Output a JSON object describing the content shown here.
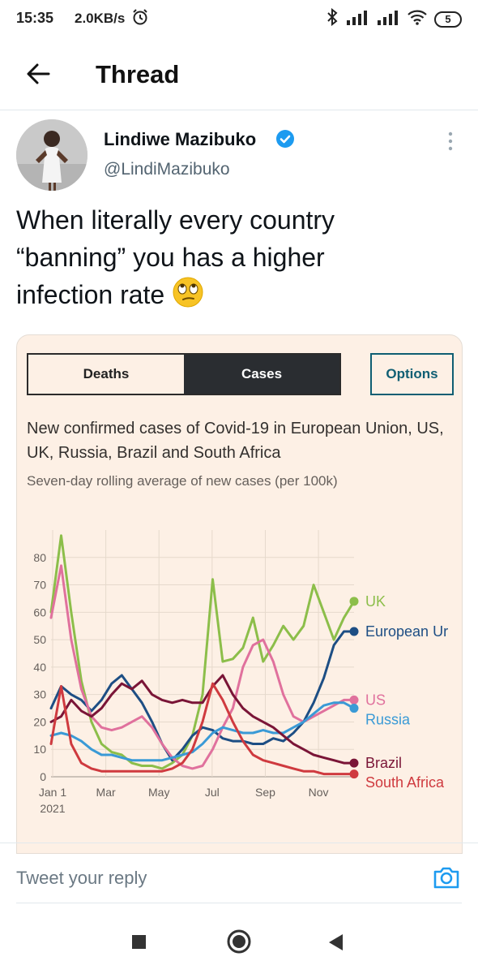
{
  "status": {
    "time": "15:35",
    "speed": "2.0KB/s",
    "battery": "5"
  },
  "header": {
    "title": "Thread"
  },
  "tweet": {
    "name": "Lindiwe Mazibuko",
    "handle": "@LindiMazibuko",
    "text_line1": "When literally every country",
    "text_line2": "“banning” you has a higher",
    "text_line3": "infection rate"
  },
  "card": {
    "tab_deaths": "Deaths",
    "tab_cases": "Cases",
    "options": "Options",
    "title": "New confirmed cases of Covid-19 in European Union, US, UK, Russia, Brazil and South Africa",
    "subtitle": "Seven-day rolling average of new cases (per 100k)"
  },
  "chart_data": {
    "type": "line",
    "ylim": [
      0,
      90
    ],
    "yticks": [
      "0",
      "10",
      "20",
      "30",
      "40",
      "50",
      "60",
      "70",
      "80"
    ],
    "xticks": [
      "Jan 1",
      "Mar",
      "May",
      "Jul",
      "Sep",
      "Nov"
    ],
    "x_sublabel": "2021",
    "grid": true,
    "series": [
      {
        "name": "UK",
        "color": "#8cbe4a",
        "values": [
          60,
          88,
          60,
          35,
          20,
          12,
          9,
          8,
          5,
          4,
          4,
          3,
          5,
          8,
          15,
          30,
          72,
          42,
          43,
          47,
          58,
          42,
          48,
          55,
          50,
          55,
          70,
          60,
          50,
          58,
          64
        ]
      },
      {
        "name": "European Ur",
        "color": "#1d4e84",
        "values": [
          25,
          33,
          30,
          28,
          24,
          28,
          34,
          37,
          32,
          27,
          20,
          12,
          6,
          10,
          15,
          18,
          17,
          14,
          13,
          13,
          12,
          12,
          14,
          13,
          16,
          20,
          27,
          36,
          48,
          53,
          53
        ]
      },
      {
        "name": "US",
        "color": "#e0719d",
        "values": [
          58,
          77,
          50,
          32,
          22,
          18,
          17,
          18,
          20,
          22,
          18,
          12,
          7,
          4,
          3,
          4,
          10,
          18,
          25,
          40,
          48,
          50,
          42,
          30,
          22,
          20,
          22,
          24,
          26,
          28,
          28
        ]
      },
      {
        "name": "Russia",
        "color": "#3a9ad6",
        "values": [
          15,
          16,
          15,
          13,
          10,
          8,
          8,
          7,
          6,
          6,
          6,
          6,
          7,
          8,
          9,
          12,
          16,
          18,
          17,
          16,
          16,
          17,
          16,
          16,
          18,
          20,
          23,
          26,
          27,
          27,
          25
        ]
      },
      {
        "name": "Brazil",
        "color": "#7a1537",
        "values": [
          20,
          22,
          28,
          24,
          22,
          25,
          30,
          34,
          32,
          35,
          30,
          28,
          27,
          28,
          27,
          27,
          33,
          37,
          30,
          25,
          22,
          20,
          18,
          15,
          12,
          10,
          8,
          7,
          6,
          5,
          5
        ]
      },
      {
        "name": "South Africa",
        "color": "#cf3a3f",
        "values": [
          12,
          33,
          12,
          5,
          3,
          2,
          2,
          2,
          2,
          2,
          2,
          2,
          3,
          5,
          10,
          20,
          34,
          28,
          20,
          13,
          8,
          6,
          5,
          4,
          3,
          2,
          2,
          1,
          1,
          1,
          1
        ]
      }
    ]
  },
  "reply": {
    "placeholder": "Tweet your reply"
  }
}
